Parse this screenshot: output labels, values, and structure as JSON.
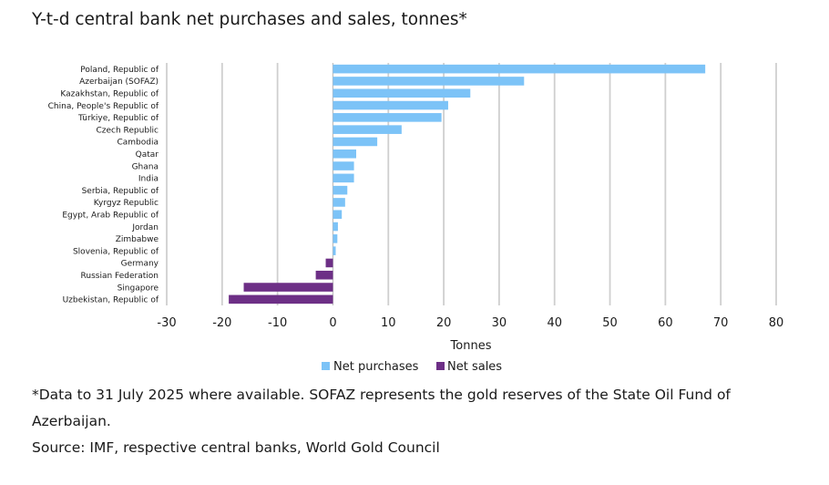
{
  "chart_data": {
    "type": "bar",
    "orientation": "horizontal",
    "title": "Y-t-d central bank net purchases and sales, tonnes*",
    "xlabel": "Tonnes",
    "ylabel": "",
    "xlim": [
      -30,
      80
    ],
    "xticks": [
      -30,
      -20,
      -10,
      0,
      10,
      20,
      30,
      40,
      50,
      60,
      70,
      80
    ],
    "grid": true,
    "legend_position": "bottom",
    "categories": [
      "Poland, Republic of",
      "Azerbaijan (SOFAZ)",
      "Kazakhstan, Republic of",
      "China, People's Republic of",
      "Türkiye, Republic of",
      "Czech Republic",
      "Cambodia",
      "Qatar",
      "Ghana",
      "India",
      "Serbia, Republic of",
      "Kyrgyz Republic",
      "Egypt, Arab Republic of",
      "Jordan",
      "Zimbabwe",
      "Slovenia, Republic of",
      "Germany",
      "Russian Federation",
      "Singapore",
      "Uzbekistan, Republic of"
    ],
    "values": [
      67.2,
      34.5,
      24.8,
      20.8,
      19.6,
      12.4,
      8.0,
      4.2,
      3.8,
      3.8,
      2.6,
      2.2,
      1.6,
      0.9,
      0.8,
      0.5,
      -1.3,
      -3.1,
      -16.1,
      -18.8
    ],
    "series": [
      {
        "name": "Net purchases",
        "color": "#7cc3f7"
      },
      {
        "name": "Net sales",
        "color": "#6d2f86"
      }
    ]
  },
  "footnote": "*Data to 31 July 2025 where available. SOFAZ represents the gold reserves of the State Oil Fund of Azerbaijan.",
  "source": "Source: IMF, respective central banks, World Gold Council",
  "colors": {
    "grid": "#cfcfcf",
    "axis": "#bdbdbd"
  }
}
